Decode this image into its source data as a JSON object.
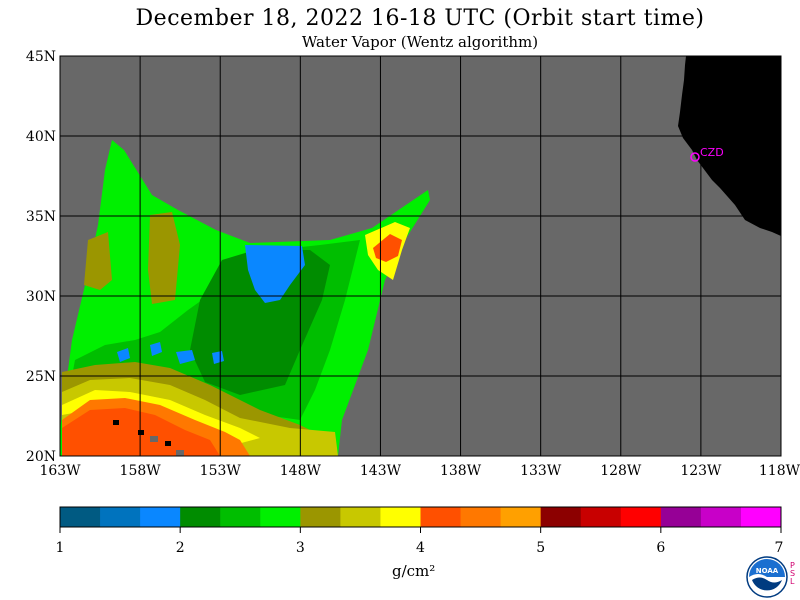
{
  "title": "December 18, 2022  16-18 UTC  (Orbit start time)",
  "subtitle": "Water Vapor (Wentz algorithm)",
  "map": {
    "lat_labels": [
      "45N",
      "40N",
      "35N",
      "30N",
      "25N",
      "20N"
    ],
    "lon_labels": [
      "163W",
      "158W",
      "153W",
      "148W",
      "143W",
      "138W",
      "133W",
      "128W",
      "123W",
      "118W"
    ],
    "station_label": "CZD",
    "colors": {
      "no_data": "#686868",
      "land": "#000000",
      "grid": "#000000",
      "station": "#ff00ff"
    }
  },
  "colorbar": {
    "tick_labels": [
      "1",
      "2",
      "3",
      "4",
      "5",
      "6",
      "7"
    ],
    "units": "g/cm²",
    "colors": [
      "#005a82",
      "#0073be",
      "#0a87ff",
      "#008c00",
      "#00be00",
      "#00f000",
      "#9b9600",
      "#c8c800",
      "#ffff00",
      "#ff5000",
      "#ff7800",
      "#ffa000",
      "#8c0000",
      "#c80000",
      "#ff0000",
      "#960096",
      "#c800c8",
      "#ff00ff"
    ]
  },
  "logo": {
    "name": "noaa-logo",
    "psl_letters": "PSL"
  }
}
